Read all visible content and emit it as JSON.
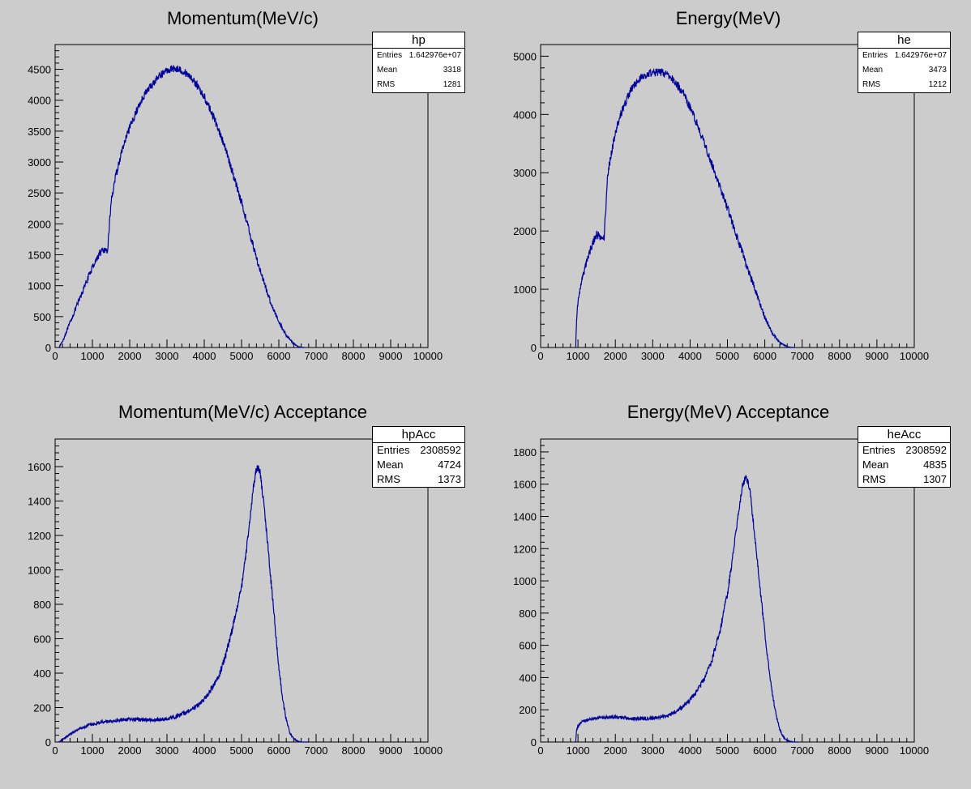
{
  "chart_data": [
    {
      "type": "line",
      "title": "Momentum(MeV/c)",
      "xlim": [
        0,
        10000
      ],
      "ylim": [
        0,
        4900
      ],
      "x_ticks": [
        0,
        1000,
        2000,
        3000,
        4000,
        5000,
        6000,
        7000,
        8000,
        9000,
        10000
      ],
      "y_ticks": [
        0,
        500,
        1000,
        1500,
        2000,
        2500,
        3000,
        3500,
        4000,
        4500
      ],
      "line_color": "#000099",
      "stats": {
        "name": "hp",
        "entries_label": "Entries",
        "entries": "1.642976e+07",
        "mean_label": "Mean",
        "mean": "3318",
        "rms_label": "RMS",
        "rms": "1281"
      },
      "series": [
        {
          "x": [
            100,
            200,
            400,
            600,
            800,
            1000,
            1100,
            1200,
            1300,
            1400,
            1500,
            1600,
            1800,
            2000,
            2200,
            2400,
            2600,
            2800,
            3000,
            3200,
            3400,
            3600,
            3800,
            4000,
            4200,
            4400,
            4600,
            4800,
            5000,
            5200,
            5400,
            5600,
            5800,
            6000,
            6200,
            6400,
            6500,
            6600,
            6700
          ],
          "y": [
            0,
            100,
            400,
            700,
            1000,
            1300,
            1420,
            1530,
            1580,
            1520,
            2350,
            2700,
            3200,
            3550,
            3850,
            4100,
            4250,
            4400,
            4480,
            4520,
            4480,
            4400,
            4250,
            4050,
            3800,
            3500,
            3150,
            2750,
            2350,
            1900,
            1450,
            1050,
            700,
            420,
            200,
            60,
            20,
            5,
            0
          ],
          "noise": 60
        }
      ]
    },
    {
      "type": "line",
      "title": "Energy(MeV)",
      "xlim": [
        0,
        10000
      ],
      "ylim": [
        0,
        5200
      ],
      "x_ticks": [
        0,
        1000,
        2000,
        3000,
        4000,
        5000,
        6000,
        7000,
        8000,
        9000,
        10000
      ],
      "y_ticks": [
        0,
        1000,
        2000,
        3000,
        4000,
        5000
      ],
      "line_color": "#000099",
      "stats": {
        "name": "he",
        "entries_label": "Entries",
        "entries": "1.642976e+07",
        "mean_label": "Mean",
        "mean": "3473",
        "rms_label": "RMS",
        "rms": "1212"
      },
      "series": [
        {
          "x": [
            940,
            950,
            1000,
            1100,
            1200,
            1300,
            1400,
            1500,
            1600,
            1700,
            1800,
            2000,
            2200,
            2400,
            2600,
            2800,
            3000,
            3200,
            3400,
            3600,
            3800,
            4000,
            4200,
            4400,
            4600,
            4800,
            5000,
            5200,
            5400,
            5600,
            5800,
            6000,
            6200,
            6400,
            6600,
            6700,
            6800
          ],
          "y": [
            0,
            300,
            800,
            1150,
            1400,
            1620,
            1800,
            1950,
            1880,
            1900,
            3000,
            3700,
            4100,
            4400,
            4580,
            4680,
            4720,
            4730,
            4680,
            4560,
            4380,
            4120,
            3820,
            3480,
            3120,
            2750,
            2400,
            2000,
            1620,
            1250,
            880,
            520,
            250,
            80,
            15,
            5,
            0
          ],
          "noise": 70
        }
      ]
    },
    {
      "type": "line",
      "title": "Momentum(MeV/c) Acceptance",
      "xlim": [
        0,
        10000
      ],
      "ylim": [
        0,
        1760
      ],
      "x_ticks": [
        0,
        1000,
        2000,
        3000,
        4000,
        5000,
        6000,
        7000,
        8000,
        9000,
        10000
      ],
      "y_ticks": [
        0,
        200,
        400,
        600,
        800,
        1000,
        1200,
        1400,
        1600
      ],
      "line_color": "#000099",
      "stats": {
        "name": "hpAcc",
        "entries_label": "Entries",
        "entries": "2308592",
        "mean_label": "Mean",
        "mean": "4724",
        "rms_label": "RMS",
        "rms": "1373"
      },
      "series": [
        {
          "x": [
            100,
            300,
            500,
            800,
            1000,
            1200,
            1400,
            1600,
            1800,
            2000,
            2200,
            2500,
            2800,
            3000,
            3200,
            3500,
            3800,
            4000,
            4200,
            4400,
            4600,
            4800,
            5000,
            5100,
            5200,
            5300,
            5350,
            5400,
            5450,
            5500,
            5600,
            5700,
            5800,
            5900,
            6000,
            6100,
            6200,
            6300,
            6400,
            6500,
            6600,
            6700,
            6800
          ],
          "y": [
            0,
            30,
            60,
            90,
            105,
            115,
            120,
            125,
            130,
            132,
            130,
            128,
            130,
            135,
            145,
            170,
            210,
            250,
            310,
            390,
            520,
            700,
            900,
            1060,
            1240,
            1450,
            1530,
            1590,
            1600,
            1560,
            1380,
            1150,
            910,
            670,
            440,
            250,
            130,
            50,
            20,
            5,
            0,
            0,
            0
          ],
          "noise": 22
        }
      ]
    },
    {
      "type": "line",
      "title": "Energy(MeV) Acceptance",
      "xlim": [
        0,
        10000
      ],
      "ylim": [
        0,
        1880
      ],
      "x_ticks": [
        0,
        1000,
        2000,
        3000,
        4000,
        5000,
        6000,
        7000,
        8000,
        9000,
        10000
      ],
      "y_ticks": [
        0,
        200,
        400,
        600,
        800,
        1000,
        1200,
        1400,
        1600,
        1800
      ],
      "line_color": "#000099",
      "stats": {
        "name": "heAcc",
        "entries_label": "Entries",
        "entries": "2308592",
        "mean_label": "Mean",
        "mean": "4835",
        "rms_label": "RMS",
        "rms": "1307"
      },
      "series": [
        {
          "x": [
            940,
            960,
            1000,
            1100,
            1200,
            1400,
            1600,
            1800,
            2000,
            2200,
            2400,
            2600,
            2800,
            3000,
            3200,
            3400,
            3600,
            3800,
            4000,
            4200,
            4400,
            4600,
            4800,
            5000,
            5100,
            5200,
            5300,
            5400,
            5450,
            5500,
            5550,
            5600,
            5700,
            5800,
            5900,
            6000,
            6100,
            6200,
            6300,
            6400,
            6500,
            6600,
            6700,
            6800,
            6900
          ],
          "y": [
            0,
            70,
            100,
            125,
            135,
            145,
            150,
            155,
            155,
            150,
            145,
            145,
            145,
            150,
            155,
            165,
            185,
            215,
            260,
            320,
            400,
            520,
            690,
            920,
            1080,
            1260,
            1440,
            1580,
            1620,
            1640,
            1610,
            1560,
            1350,
            1120,
            900,
            680,
            480,
            300,
            170,
            80,
            30,
            10,
            3,
            0,
            0
          ],
          "noise": 22
        }
      ]
    }
  ]
}
